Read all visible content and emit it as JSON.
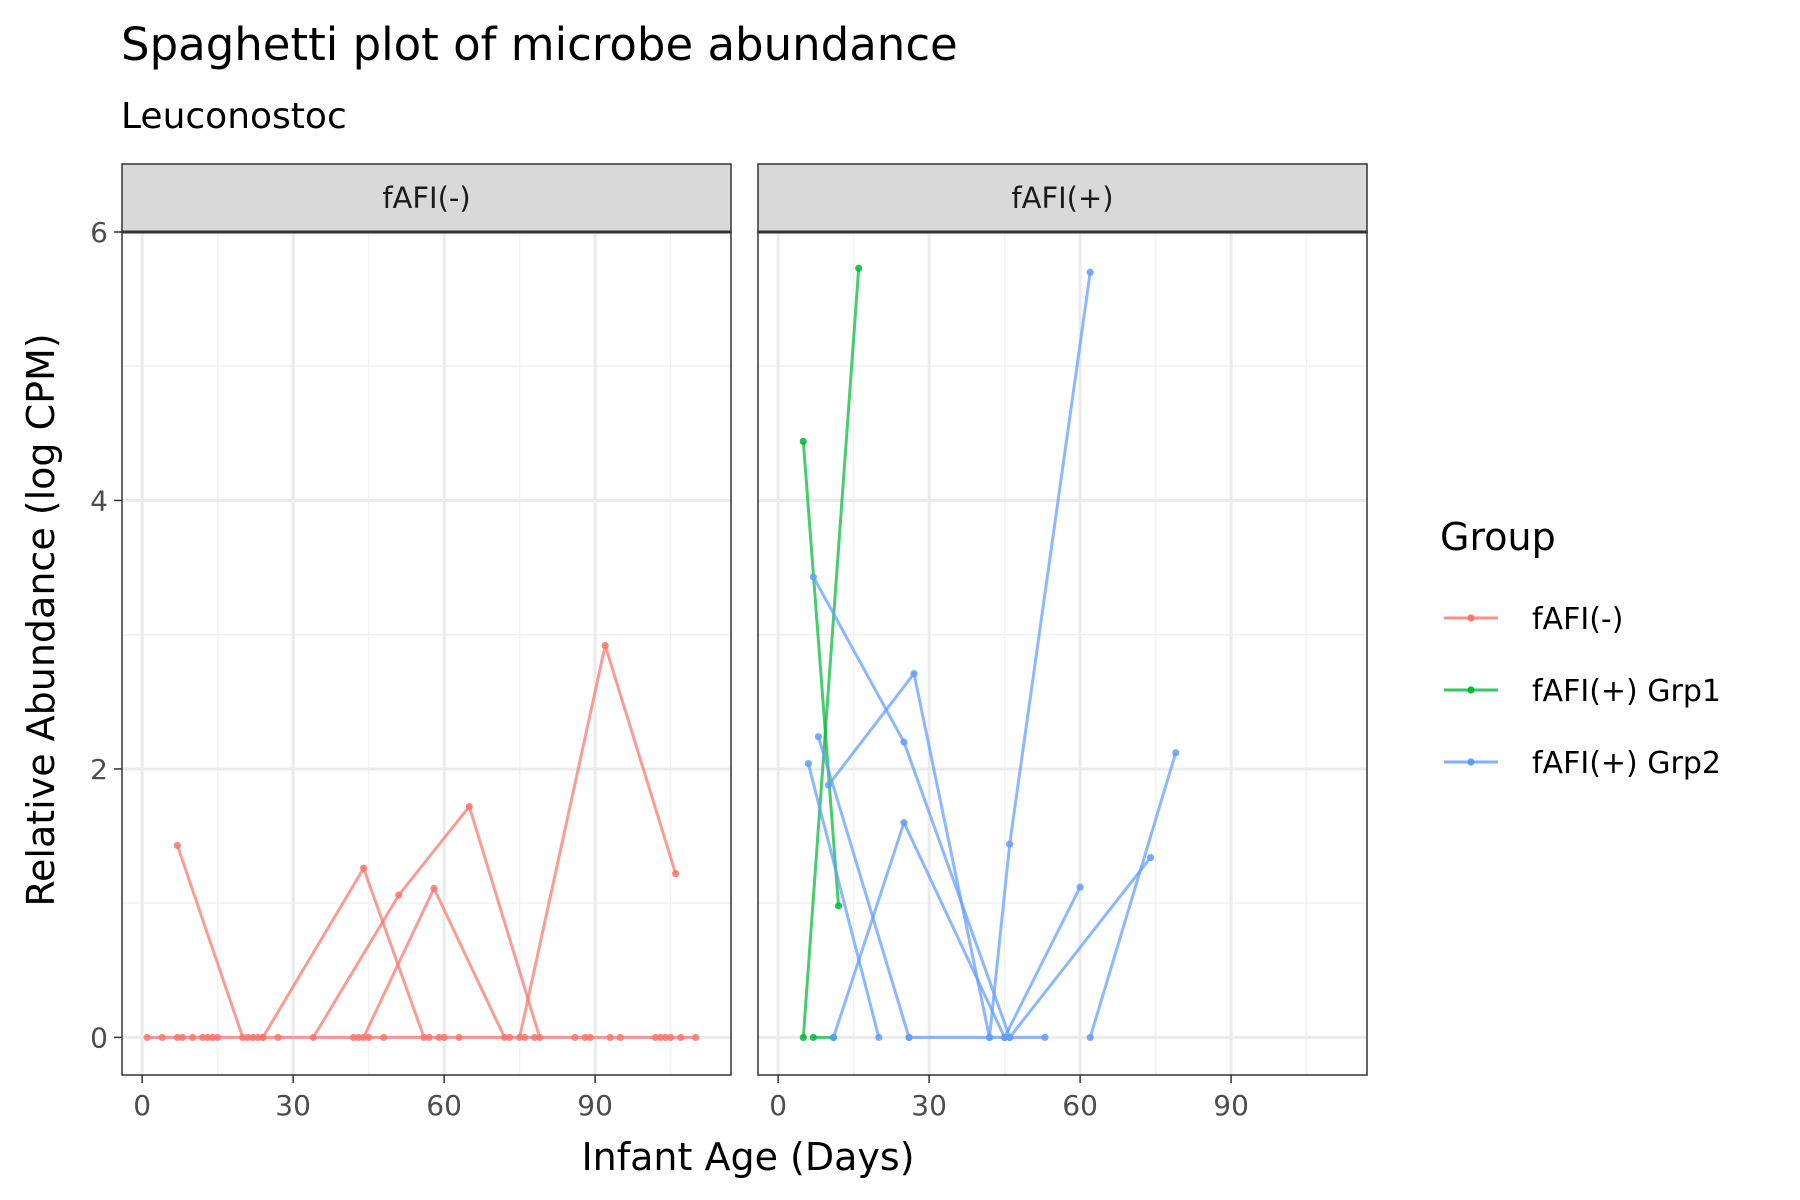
{
  "chart_data": {
    "type": "line",
    "title": "Spaghetti plot of microbe abundance",
    "subtitle": "Leuconostoc",
    "xlabel": "Infant Age (Days)",
    "ylabel": "Relative Abundance (log CPM)",
    "xlim": [
      -4,
      117
    ],
    "ylim": [
      -0.28,
      6.0
    ],
    "x_ticks": [
      0,
      30,
      60,
      90
    ],
    "y_ticks": [
      0,
      2,
      4,
      6
    ],
    "grid": true,
    "legend": {
      "title": "Group",
      "position": "right",
      "entries": [
        {
          "label": "fAFI(-)",
          "color": "#F8766D"
        },
        {
          "label": "fAFI(+) Grp1",
          "color": "#00BA38"
        },
        {
          "label": "fAFI(+) Grp2",
          "color": "#619CFF"
        }
      ]
    },
    "facets": [
      {
        "label": "fAFI(-)",
        "series": [
          {
            "group": "fAFI(-)",
            "points": [
              [
                7,
                1.43
              ],
              [
                20,
                0.0
              ],
              [
                24,
                0.0
              ]
            ]
          },
          {
            "group": "fAFI(-)",
            "points": [
              [
                24,
                0.0
              ],
              [
                44,
                1.26
              ],
              [
                56,
                0.0
              ]
            ]
          },
          {
            "group": "fAFI(-)",
            "points": [
              [
                34,
                0.0
              ],
              [
                51,
                1.06
              ],
              [
                65,
                1.72
              ],
              [
                79,
                0.0
              ]
            ]
          },
          {
            "group": "fAFI(-)",
            "points": [
              [
                44,
                0.0
              ],
              [
                58,
                1.11
              ],
              [
                72,
                0.0
              ]
            ]
          },
          {
            "group": "fAFI(-)",
            "points": [
              [
                75,
                0.0
              ],
              [
                92,
                2.92
              ],
              [
                106,
                1.22
              ]
            ]
          },
          {
            "group": "fAFI(-)",
            "points": [
              [
                1,
                0
              ],
              [
                4,
                0
              ],
              [
                7,
                0
              ],
              [
                8,
                0
              ],
              [
                10,
                0
              ],
              [
                12,
                0
              ],
              [
                13,
                0
              ],
              [
                14,
                0
              ],
              [
                15,
                0
              ],
              [
                21,
                0
              ],
              [
                22,
                0
              ],
              [
                23,
                0
              ],
              [
                27,
                0
              ],
              [
                42,
                0
              ],
              [
                43,
                0
              ],
              [
                45,
                0
              ],
              [
                48,
                0
              ],
              [
                57,
                0
              ],
              [
                59,
                0
              ],
              [
                60,
                0
              ],
              [
                63,
                0
              ],
              [
                73,
                0
              ],
              [
                76,
                0
              ],
              [
                78,
                0
              ],
              [
                86,
                0
              ],
              [
                88,
                0
              ],
              [
                89,
                0
              ],
              [
                93,
                0
              ],
              [
                95,
                0
              ],
              [
                102,
                0
              ],
              [
                103,
                0
              ],
              [
                104,
                0
              ],
              [
                105,
                0
              ],
              [
                107,
                0
              ],
              [
                110,
                0
              ]
            ]
          }
        ]
      },
      {
        "label": "fAFI(+)",
        "series": [
          {
            "group": "fAFI(+) Grp1",
            "points": [
              [
                5,
                0.0
              ],
              [
                16,
                5.73
              ]
            ]
          },
          {
            "group": "fAFI(+) Grp1",
            "points": [
              [
                5,
                4.44
              ],
              [
                12,
                0.98
              ]
            ]
          },
          {
            "group": "fAFI(+) Grp1",
            "points": [
              [
                7,
                0.0
              ],
              [
                11,
                0.0
              ]
            ]
          },
          {
            "group": "fAFI(+) Grp2",
            "points": [
              [
                7,
                3.43
              ],
              [
                25,
                2.2
              ],
              [
                46,
                0.0
              ]
            ]
          },
          {
            "group": "fAFI(+) Grp2",
            "points": [
              [
                8,
                2.24
              ],
              [
                26,
                0.0
              ]
            ]
          },
          {
            "group": "fAFI(+) Grp2",
            "points": [
              [
                6,
                2.04
              ],
              [
                20,
                0.0
              ]
            ]
          },
          {
            "group": "fAFI(+) Grp2",
            "points": [
              [
                10,
                1.88
              ],
              [
                27,
                2.71
              ],
              [
                42,
                0.0
              ]
            ]
          },
          {
            "group": "fAFI(+) Grp2",
            "points": [
              [
                11,
                0.0
              ],
              [
                25,
                1.6
              ],
              [
                45,
                0.0
              ]
            ]
          },
          {
            "group": "fAFI(+) Grp2",
            "points": [
              [
                42,
                0.0
              ],
              [
                46,
                1.44
              ],
              [
                62,
                5.7
              ]
            ]
          },
          {
            "group": "fAFI(+) Grp2",
            "points": [
              [
                45,
                0.0
              ],
              [
                60,
                1.12
              ]
            ]
          },
          {
            "group": "fAFI(+) Grp2",
            "points": [
              [
                46,
                0.0
              ],
              [
                74,
                1.34
              ]
            ]
          },
          {
            "group": "fAFI(+) Grp2",
            "points": [
              [
                62,
                0.0
              ],
              [
                79,
                2.12
              ]
            ]
          },
          {
            "group": "fAFI(+) Grp2",
            "points": [
              [
                26,
                0.0
              ],
              [
                45,
                0.0
              ],
              [
                53,
                0.0
              ]
            ]
          }
        ]
      }
    ]
  }
}
